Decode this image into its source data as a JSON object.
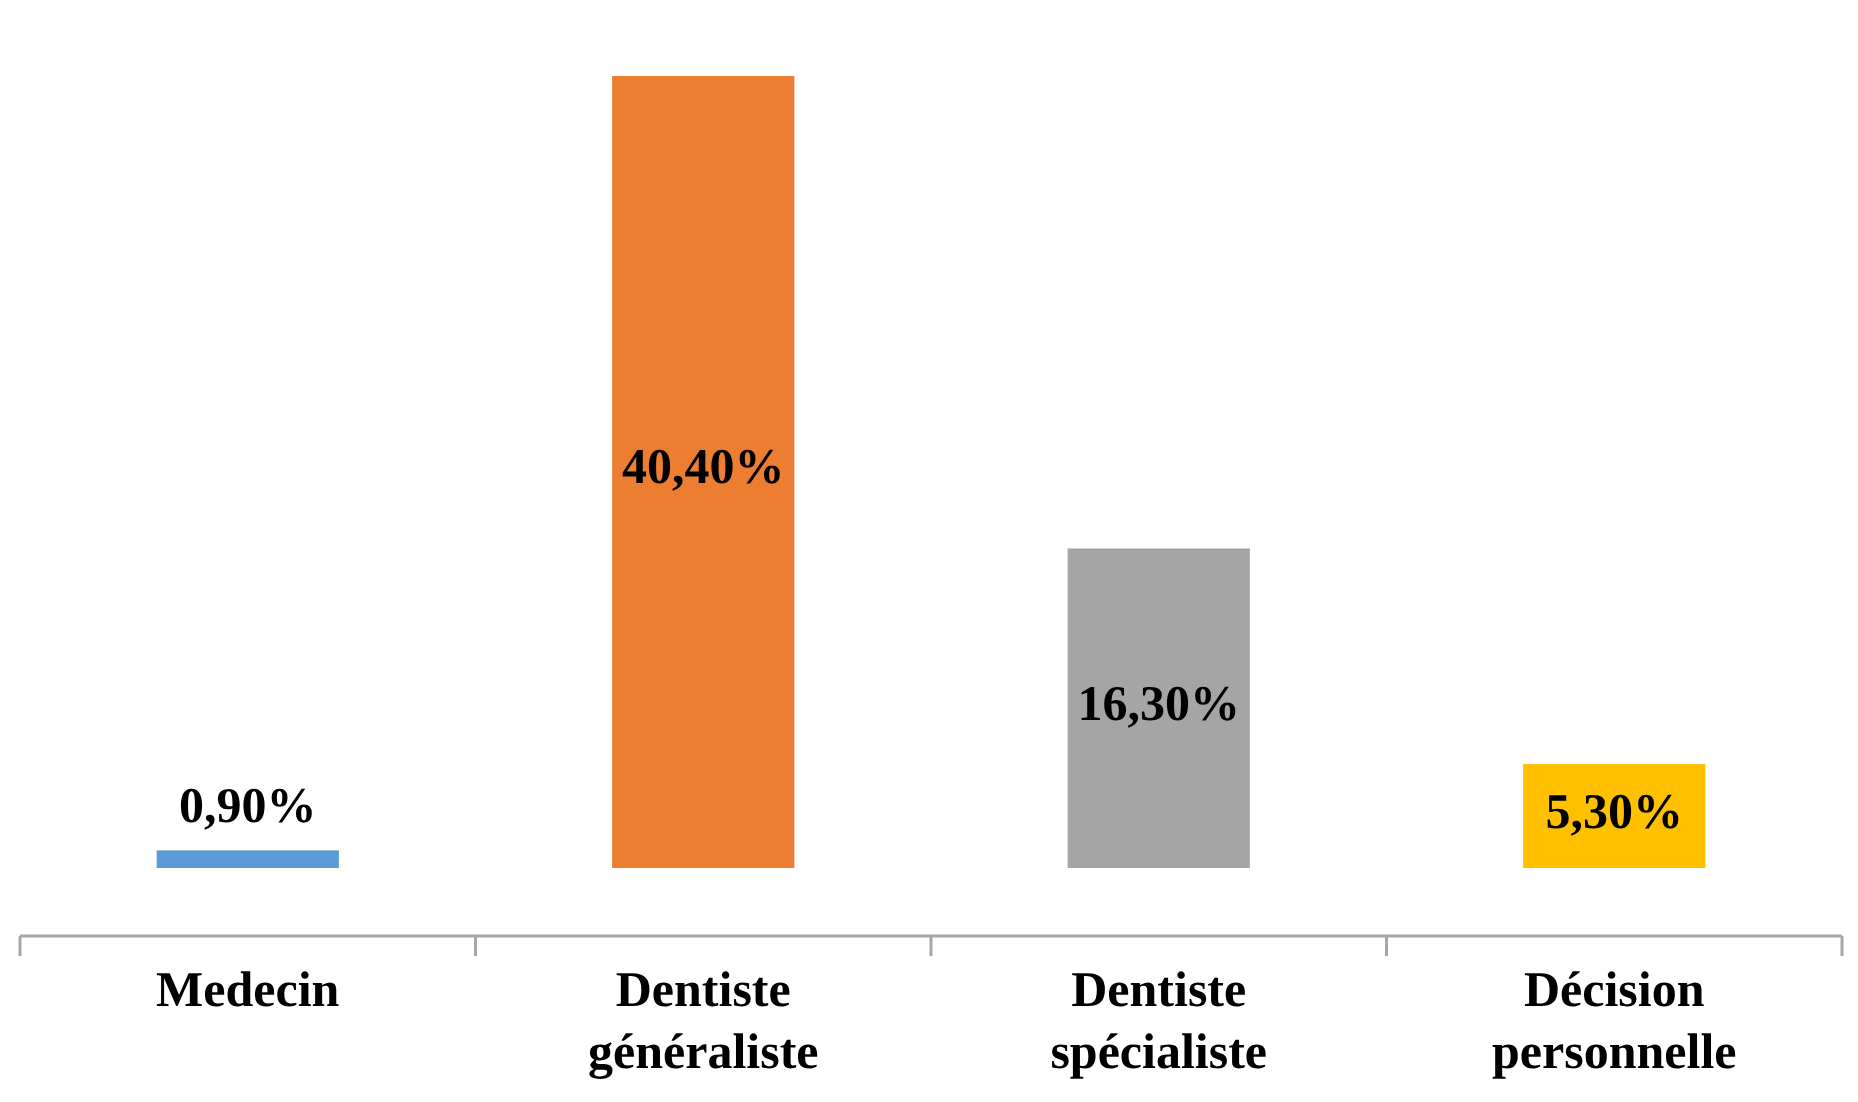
{
  "chart_data": {
    "type": "bar",
    "categories": [
      "Medecin",
      "Dentiste généraliste",
      "Dentiste spécialiste",
      "Décision personnelle"
    ],
    "values": [
      0.9,
      40.4,
      16.3,
      5.3
    ],
    "colors": [
      "#5b9bd5",
      "#ed7d31",
      "#a5a5a5",
      "#ffc000"
    ],
    "value_labels": [
      "0,90%",
      "40,40%",
      "16,30%",
      "5,30%"
    ]
  }
}
